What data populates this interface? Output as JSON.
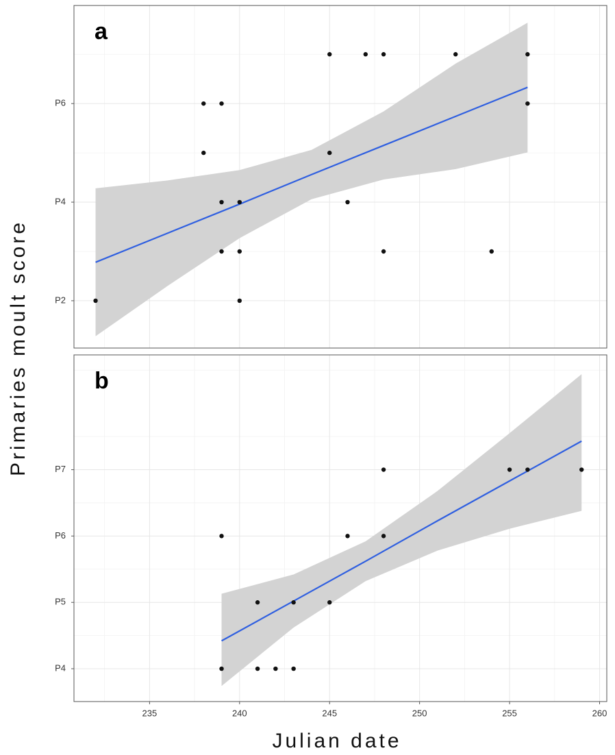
{
  "chart_data": [
    {
      "type": "scatter",
      "panel_label": "a",
      "ylabel": "Primaries moult score",
      "x": [
        232,
        238,
        239,
        238,
        239,
        240,
        239,
        240,
        240,
        245,
        247,
        248,
        252,
        256,
        256,
        245,
        246,
        248,
        254
      ],
      "values": [
        2,
        6,
        6,
        5,
        4,
        4,
        3,
        3,
        2,
        7,
        7,
        7,
        7,
        7,
        6,
        5,
        4,
        3,
        3
      ],
      "color": "#111111",
      "fit": {
        "x": [
          232,
          236,
          240,
          244,
          248,
          252,
          256
        ],
        "values": [
          2.78,
          3.37,
          3.96,
          4.56,
          5.15,
          5.74,
          6.33
        ],
        "lower": [
          1.28,
          2.3,
          3.27,
          4.06,
          4.46,
          4.67,
          5.01
        ],
        "upper": [
          4.28,
          4.44,
          4.65,
          5.06,
          5.84,
          6.81,
          7.64
        ],
        "color": "#2f5fe0",
        "band_color": "#d3d3d3"
      },
      "xlim": [
        230.8,
        260.4
      ],
      "xticks": [
        235,
        240,
        245,
        250,
        255,
        260
      ],
      "x_minor_grid": [
        232.5,
        237.5,
        242.5,
        247.5,
        252.5,
        257.5
      ],
      "ylim": [
        1.04,
        7.99
      ],
      "yticks": [
        {
          "value": 2,
          "label": "P2"
        },
        {
          "value": 4,
          "label": "P4"
        },
        {
          "value": 6,
          "label": "P6"
        }
      ],
      "y_minor_grid": [
        3,
        5,
        7
      ],
      "grid": true
    },
    {
      "type": "scatter",
      "panel_label": "b",
      "xlabel": "Julian date",
      "x": [
        239,
        239,
        241,
        241,
        242,
        243,
        243,
        245,
        246,
        248,
        248,
        255,
        256,
        259
      ],
      "values": [
        6,
        4,
        5,
        4,
        4,
        4,
        5,
        5,
        6,
        6,
        7,
        7,
        7,
        7
      ],
      "color": "#111111",
      "fit": {
        "x": [
          239,
          243,
          247,
          251,
          255,
          259
        ],
        "values": [
          4.42,
          5.02,
          5.62,
          6.23,
          6.83,
          7.43
        ],
        "lower": [
          3.74,
          4.62,
          5.32,
          5.78,
          6.11,
          6.38
        ],
        "upper": [
          5.13,
          5.42,
          5.92,
          6.68,
          7.55,
          8.44
        ],
        "color": "#2f5fe0",
        "band_color": "#d3d3d3"
      },
      "xlim": [
        230.8,
        260.4
      ],
      "xticks": [
        235,
        240,
        245,
        250,
        255,
        260
      ],
      "x_minor_grid": [
        232.5,
        237.5,
        242.5,
        247.5,
        252.5,
        257.5
      ],
      "ylim": [
        3.505,
        8.73
      ],
      "yticks": [
        {
          "value": 4,
          "label": "P4"
        },
        {
          "value": 5,
          "label": "P5"
        },
        {
          "value": 6,
          "label": "P6"
        },
        {
          "value": 7,
          "label": "P7"
        }
      ],
      "y_minor_grid": [
        4.5,
        5.5,
        6.5,
        7.5,
        8.5
      ],
      "grid": true
    }
  ]
}
